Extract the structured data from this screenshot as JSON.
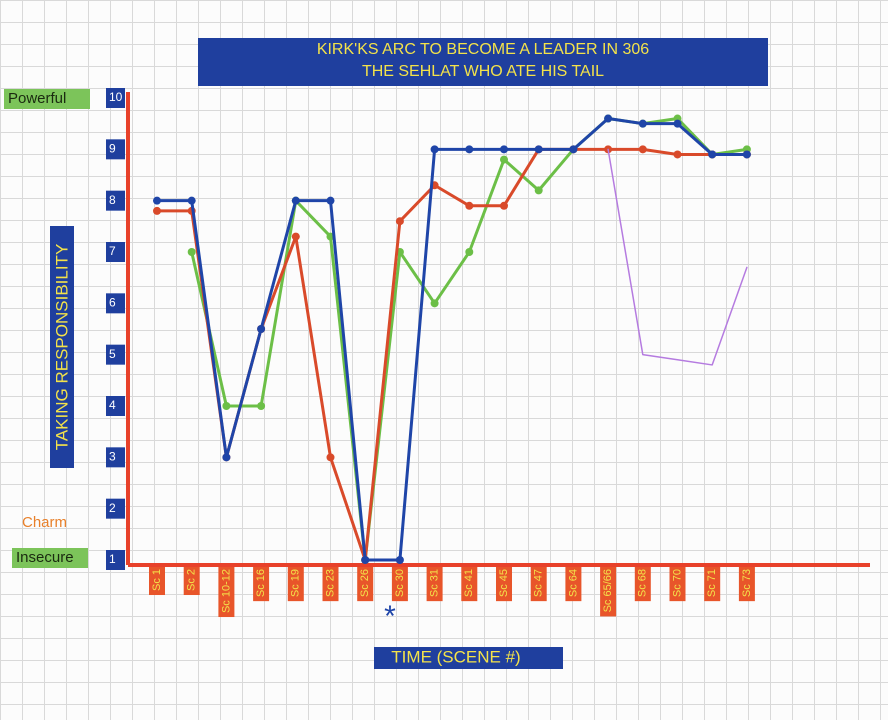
{
  "chart_data": {
    "type": "line",
    "title": "KIRK'KS ARC TO BECOME A LEADER IN 306",
    "subtitle": "THE SEHLAT WHO ATE HIS TAIL",
    "y_label": "TAKING RESPONSIBILITY",
    "x_label": "TIME (SCENE #)",
    "annotations": {
      "top": "Powerful",
      "middle": "Charm",
      "bottom": "Insecure",
      "marker": "*"
    },
    "categories": [
      "Sc 1",
      "Sc 2",
      "Sc 10-12",
      "Sc 16",
      "Sc 19",
      "Sc 23",
      "Sc 26",
      "Sc 30",
      "Sc 31",
      "Sc 41",
      "Sc 45",
      "Sc 47",
      "Sc 64",
      "Sc 65/66",
      "Sc 68",
      "Sc 70",
      "Sc 71",
      "Sc 73"
    ],
    "series": [
      {
        "color": "#6cbf47",
        "markers": true,
        "values": [
          null,
          7,
          4,
          4,
          8,
          7.3,
          1,
          7,
          6,
          7,
          8.8,
          8.2,
          9,
          9.6,
          9.5,
          9.6,
          8.9,
          9
        ]
      },
      {
        "color": "#d94a2a",
        "markers": true,
        "values": [
          7.8,
          7.8,
          3,
          5.5,
          7.3,
          3,
          1,
          7.6,
          8.3,
          7.9,
          7.9,
          9,
          9,
          9,
          9,
          8.9,
          8.9,
          8.9
        ]
      },
      {
        "color": "#1f45a8",
        "markers": true,
        "values": [
          8,
          8,
          3,
          5.5,
          8,
          8,
          1,
          1,
          9,
          9,
          9,
          9,
          9,
          9.6,
          9.5,
          9.5,
          8.9,
          8.9
        ]
      },
      {
        "color": "#b57be0",
        "markers": false,
        "values": [
          null,
          null,
          null,
          null,
          null,
          null,
          null,
          null,
          null,
          null,
          null,
          null,
          null,
          9,
          5,
          4.9,
          4.8,
          6.7
        ]
      }
    ],
    "ylim": [
      1,
      10
    ],
    "yticks": [
      1,
      2,
      3,
      4,
      5,
      6,
      7,
      8,
      9,
      10
    ],
    "axis_color": "#e8412a",
    "label_box_color": "#1f3f9e",
    "category_box_color": "#e8552a"
  }
}
